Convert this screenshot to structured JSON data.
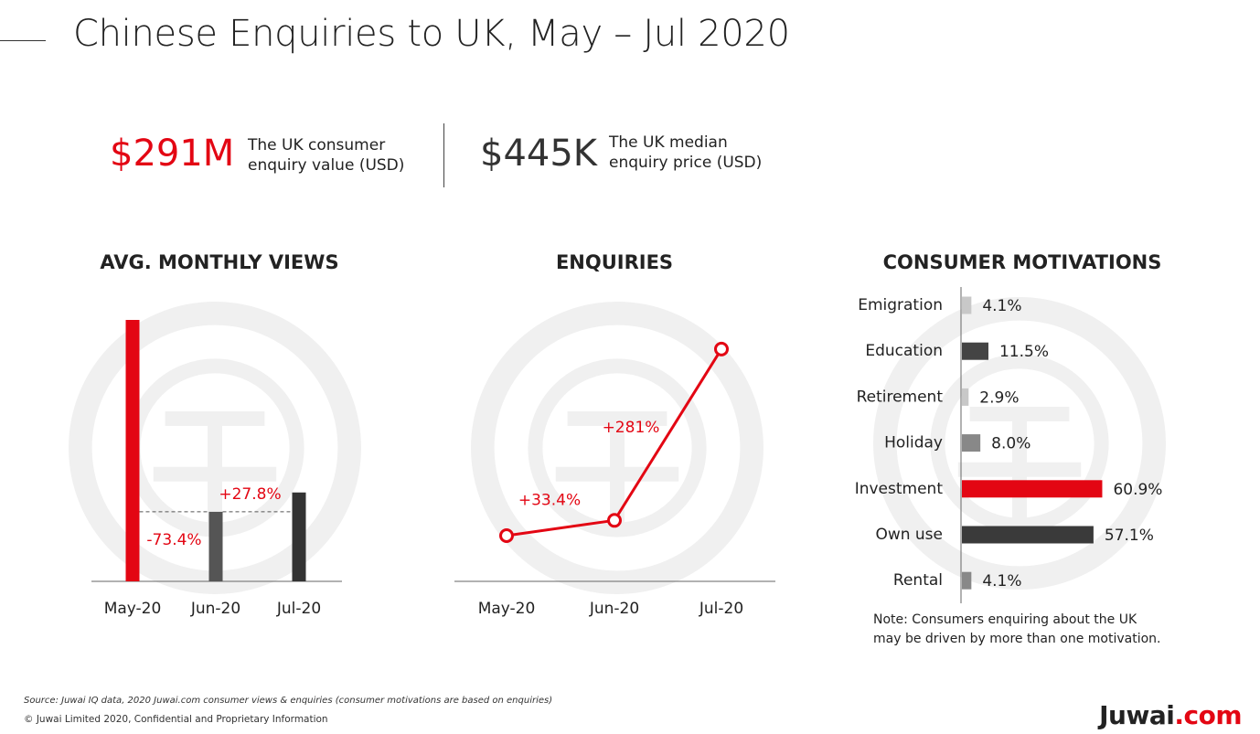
{
  "header": {
    "title": "Chinese Enquiries to UK, May – Jul 2020"
  },
  "kpis": [
    {
      "value": "$291M",
      "description_line1": "The UK consumer",
      "description_line2": "enquiry value (USD)",
      "color": "#e30613"
    },
    {
      "value": "$445K",
      "description_line1": "The UK median",
      "description_line2": "enquiry price (USD)",
      "color": "#333333"
    }
  ],
  "colors": {
    "red": "#e30613",
    "dark": "#3a3a3a",
    "mid": "#555555",
    "grey": "#888888",
    "light": "#c8c8c8",
    "watermark": "#f0f0f0"
  },
  "chart_data": [
    {
      "type": "bar",
      "title": "AVG. MONTHLY VIEWS",
      "categories": [
        "May-20",
        "Jun-20",
        "Jul-20"
      ],
      "values": [
        100,
        26.6,
        34.0
      ],
      "bar_colors": [
        "#e30613",
        "#555555",
        "#333333"
      ],
      "annotations": [
        {
          "between": [
            "May-20",
            "Jun-20"
          ],
          "text": "-73.4%"
        },
        {
          "between": [
            "Jun-20",
            "Jul-20"
          ],
          "text": "+27.8%"
        }
      ],
      "ylim": [
        0,
        100
      ],
      "grid": false
    },
    {
      "type": "line",
      "title": "ENQUIRIES",
      "categories": [
        "May-20",
        "Jun-20",
        "Jul-20"
      ],
      "values": [
        100,
        133.4,
        508.3
      ],
      "annotations": [
        {
          "at": "Jun-20",
          "text": "+33.4%"
        },
        {
          "at": "Jul-20",
          "text": "+281%"
        }
      ],
      "ylim": [
        0,
        600
      ],
      "grid": false
    },
    {
      "type": "bar",
      "orientation": "horizontal",
      "title": "CONSUMER MOTIVATIONS",
      "categories": [
        "Emigration",
        "Education",
        "Retirement",
        "Holiday",
        "Investment",
        "Own use",
        "Rental"
      ],
      "values": [
        4.1,
        11.5,
        2.9,
        8.0,
        60.9,
        57.1,
        4.1
      ],
      "labels": [
        "4.1%",
        "11.5%",
        "2.9%",
        "8.0%",
        "60.9%",
        "57.1%",
        "4.1%"
      ],
      "bar_colors": [
        "#c8c8c8",
        "#444444",
        "#c8c8c8",
        "#888888",
        "#e30613",
        "#3a3a3a",
        "#888888"
      ],
      "xlim": [
        0,
        100
      ],
      "grid": false
    }
  ],
  "note": {
    "line1": "Note: Consumers enquiring about the UK",
    "line2": "may be driven by more than one motivation."
  },
  "footer": {
    "source": "Source: Juwai IQ data, 2020 Juwai.com consumer views & enquiries (consumer motivations are based on enquiries)",
    "copyright": "© Juwai Limited 2020, Confidential and Proprietary Information",
    "brand_name": "Juwai",
    "brand_suffix": ".com"
  }
}
